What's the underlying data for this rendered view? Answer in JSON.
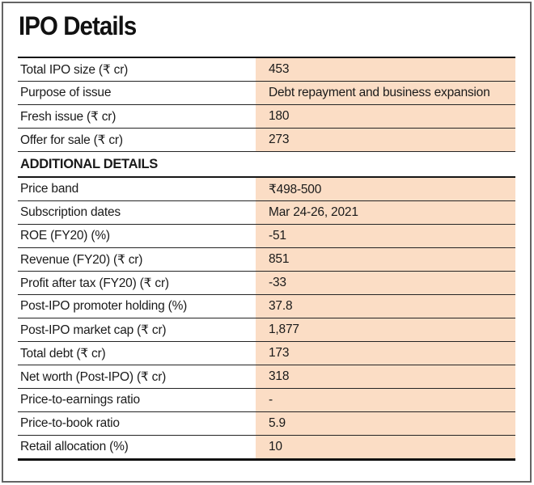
{
  "chart_data": {
    "type": "table",
    "title": "IPO Details",
    "columns": [
      "label",
      "value"
    ],
    "colors": {
      "value_column_bg": "#fbddc5",
      "row_line": "#242424",
      "frame_border": "#646464",
      "text": "#1a1a1a"
    },
    "rows": [
      {
        "type": "data",
        "label": "Total IPO size (₹ cr)",
        "value": "453"
      },
      {
        "type": "data",
        "label": "Purpose of issue",
        "value": "Debt repayment and business expansion"
      },
      {
        "type": "data",
        "label": "Fresh issue (₹ cr)",
        "value": "180"
      },
      {
        "type": "data",
        "label": "Offer for sale (₹ cr)",
        "value": "273"
      },
      {
        "type": "section",
        "label": "ADDITIONAL DETAILS",
        "value": ""
      },
      {
        "type": "data",
        "label": "Price band",
        "value": "₹498-500"
      },
      {
        "type": "data",
        "label": "Subscription dates",
        "value": "Mar 24-26, 2021"
      },
      {
        "type": "data",
        "label": "ROE (FY20) (%)",
        "value": "-51"
      },
      {
        "type": "data",
        "label": "Revenue (FY20) (₹ cr)",
        "value": "851"
      },
      {
        "type": "data",
        "label": "Profit after tax (FY20) (₹ cr)",
        "value": "-33"
      },
      {
        "type": "data",
        "label": "Post-IPO promoter holding (%)",
        "value": "37.8"
      },
      {
        "type": "data",
        "label": "Post-IPO market cap (₹ cr)",
        "value": "1,877"
      },
      {
        "type": "data",
        "label": "Total debt (₹ cr)",
        "value": "173"
      },
      {
        "type": "data",
        "label": "Net worth (Post-IPO) (₹ cr)",
        "value": "318"
      },
      {
        "type": "data",
        "label": "Price-to-earnings ratio",
        "value": "-"
      },
      {
        "type": "data",
        "label": "Price-to-book ratio",
        "value": "5.9"
      },
      {
        "type": "data",
        "label": "Retail allocation (%)",
        "value": "10"
      }
    ]
  }
}
